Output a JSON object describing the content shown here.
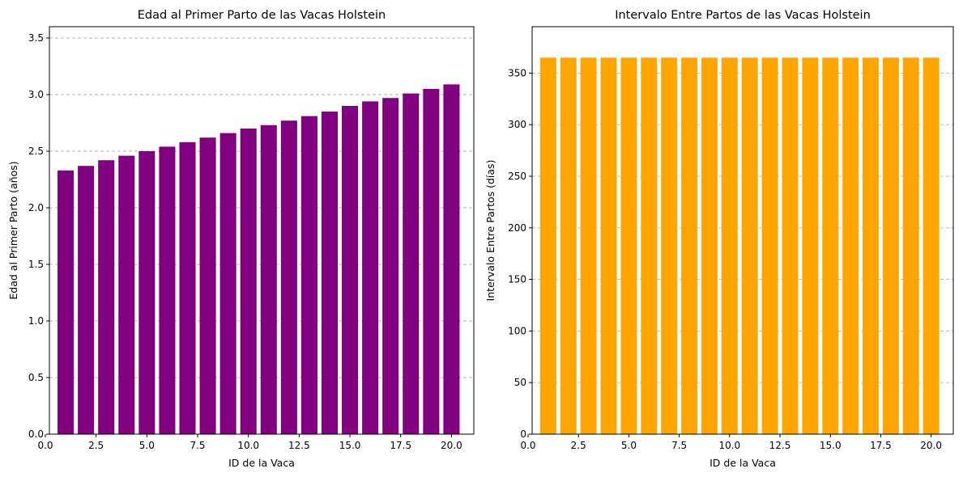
{
  "chart_data": [
    {
      "type": "bar",
      "title": "Edad al Primer Parto de las Vacas Holstein",
      "xlabel": "ID de la Vaca",
      "ylabel": "Edad al Primer Parto (años)",
      "x": [
        1,
        2,
        3,
        4,
        5,
        6,
        7,
        8,
        9,
        10,
        11,
        12,
        13,
        14,
        15,
        16,
        17,
        18,
        19,
        20
      ],
      "values": [
        2.33,
        2.37,
        2.42,
        2.46,
        2.5,
        2.54,
        2.58,
        2.62,
        2.66,
        2.7,
        2.73,
        2.77,
        2.81,
        2.85,
        2.9,
        2.94,
        2.97,
        3.01,
        3.05,
        3.09
      ],
      "color": "#800080",
      "xlim": [
        0.2,
        21.1
      ],
      "ylim": [
        0,
        3.6
      ],
      "xticks": [
        0.0,
        2.5,
        5.0,
        7.5,
        10.0,
        12.5,
        15.0,
        17.5,
        20.0
      ],
      "xtick_labels": [
        "0.0",
        "2.5",
        "5.0",
        "7.5",
        "10.0",
        "12.5",
        "15.0",
        "17.5",
        "20.0"
      ],
      "yticks": [
        0.0,
        0.5,
        1.0,
        1.5,
        2.0,
        2.5,
        3.0,
        3.5
      ],
      "ytick_labels": [
        "0.0",
        "0.5",
        "1.0",
        "1.5",
        "2.0",
        "2.5",
        "3.0",
        "3.5"
      ],
      "grid": "y-dashed"
    },
    {
      "type": "bar",
      "title": "Intervalo Entre Partos de las Vacas Holstein",
      "xlabel": "ID de la Vaca",
      "ylabel": "Intervalo Entre Partos (días)",
      "x": [
        1,
        2,
        3,
        4,
        5,
        6,
        7,
        8,
        9,
        10,
        11,
        12,
        13,
        14,
        15,
        16,
        17,
        18,
        19,
        20
      ],
      "values": [
        365,
        365,
        365,
        365,
        365,
        365,
        365,
        365,
        365,
        365,
        365,
        365,
        365,
        365,
        365,
        365,
        365,
        365,
        365,
        365
      ],
      "color": "#FFA500",
      "xlim": [
        0.2,
        21.1
      ],
      "ylim": [
        0,
        395
      ],
      "xticks": [
        0.0,
        2.5,
        5.0,
        7.5,
        10.0,
        12.5,
        15.0,
        17.5,
        20.0
      ],
      "xtick_labels": [
        "0.0",
        "2.5",
        "5.0",
        "7.5",
        "10.0",
        "12.5",
        "15.0",
        "17.5",
        "20.0"
      ],
      "yticks": [
        0,
        50,
        100,
        150,
        200,
        250,
        300,
        350
      ],
      "ytick_labels": [
        "0",
        "50",
        "100",
        "150",
        "200",
        "250",
        "300",
        "350"
      ],
      "grid": "y-dashed"
    }
  ]
}
